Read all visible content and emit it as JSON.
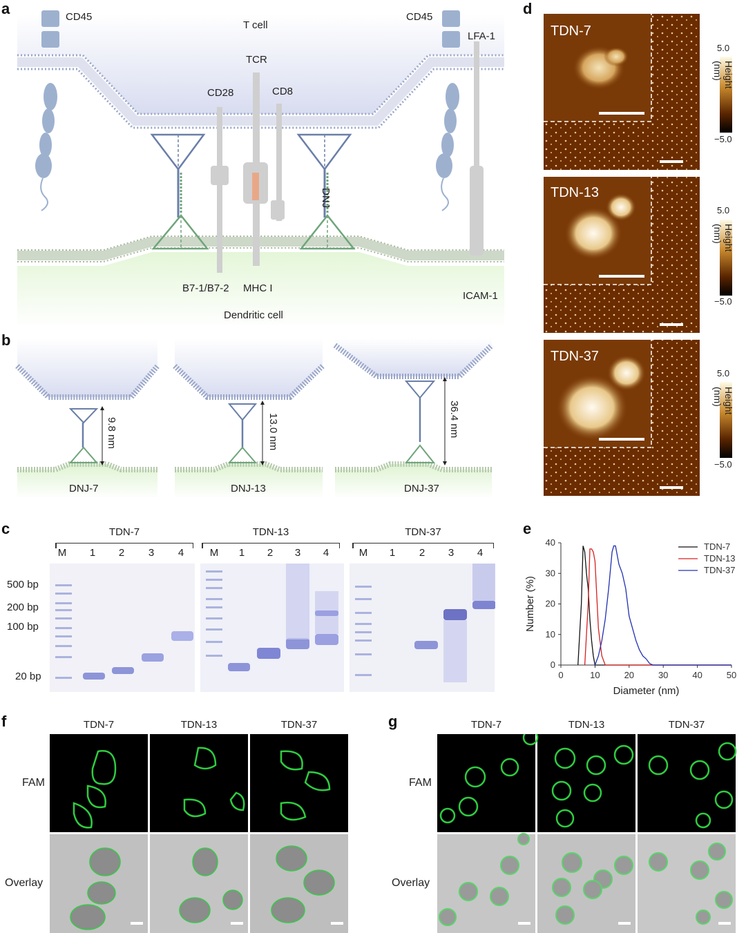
{
  "panels": {
    "a": "a",
    "b": "b",
    "c": "c",
    "d": "d",
    "e": "e",
    "f": "f",
    "g": "g"
  },
  "panel_a": {
    "t_cell": "T cell",
    "cd45_left": "CD45",
    "cd45_right": "CD45",
    "lfa1": "LFA-1",
    "tcr": "TCR",
    "cd28": "CD28",
    "cd8": "CD8",
    "dnj": "DNJ",
    "b7": "B7-1/B7-2",
    "mhc": "MHC I",
    "icam": "ICAM-1",
    "dc": "Dendritic cell"
  },
  "panel_b": [
    {
      "name": "DNJ-7",
      "distance": "9.8 nm"
    },
    {
      "name": "DNJ-13",
      "distance": "13.0 nm"
    },
    {
      "name": "DNJ-37",
      "distance": "36.4 nm"
    }
  ],
  "panel_c": {
    "groups": [
      "TDN-7",
      "TDN-13",
      "TDN-37"
    ],
    "lanes": [
      "M",
      "1",
      "2",
      "3",
      "4"
    ],
    "markers": [
      "500 bp",
      "200 bp",
      "100 bp",
      "20 bp"
    ]
  },
  "panel_d": {
    "images": [
      "TDN-7",
      "TDN-13",
      "TDN-37"
    ],
    "cb_max": "5.0",
    "cb_min": "−5.0",
    "cb_title": "Height (nm)"
  },
  "chart_data": {
    "type": "line",
    "xlabel": "Diameter (nm)",
    "ylabel": "Number (%)",
    "xlim": [
      0,
      50
    ],
    "ylim": [
      0,
      40
    ],
    "xticks": [
      "0",
      "10",
      "20",
      "30",
      "40",
      "50"
    ],
    "yticks": [
      "0",
      "10",
      "20",
      "30",
      "40"
    ],
    "legend": "top-right",
    "series": [
      {
        "name": "TDN-7",
        "color": "#111111",
        "x": [
          5,
          6,
          6.5,
          7,
          7.5,
          8,
          8.5,
          9,
          9.5,
          10,
          11,
          12,
          13,
          50
        ],
        "y": [
          0,
          20,
          39,
          37,
          30,
          25,
          15,
          8,
          3,
          0,
          0,
          0,
          0,
          0
        ]
      },
      {
        "name": "TDN-13",
        "color": "#d62020",
        "x": [
          7,
          8,
          8.5,
          9,
          9.5,
          10,
          11,
          12,
          13,
          14,
          15,
          50
        ],
        "y": [
          0,
          20,
          38,
          38,
          37,
          34,
          12,
          3,
          0,
          0,
          0,
          0
        ]
      },
      {
        "name": "TDN-37",
        "color": "#2030b0",
        "x": [
          10,
          11,
          12,
          13,
          14,
          15,
          15.5,
          16,
          17,
          18,
          19,
          20,
          21,
          22,
          23,
          24,
          25,
          26,
          27,
          28,
          50
        ],
        "y": [
          0,
          3,
          8,
          15,
          25,
          37,
          39,
          39,
          33,
          30,
          25,
          16,
          12,
          8,
          5,
          3,
          2,
          0.5,
          0,
          0,
          0
        ]
      }
    ]
  },
  "panel_f": {
    "cols": [
      "TDN-7",
      "TDN-13",
      "TDN-37"
    ],
    "rows": [
      "FAM",
      "Overlay"
    ]
  },
  "panel_g": {
    "cols": [
      "TDN-7",
      "TDN-13",
      "TDN-37"
    ],
    "rows": [
      "FAM",
      "Overlay"
    ]
  },
  "colors": {
    "membrane": "#9aa6c8",
    "t_cell_fill": "#dfe3f2",
    "dc_fill": "#d6f0c8",
    "dnj_blue": "#6a7fa8",
    "dnj_green": "#6ea57a",
    "afm_dark": "#5a2500",
    "fam_green": "#2ecc40"
  }
}
